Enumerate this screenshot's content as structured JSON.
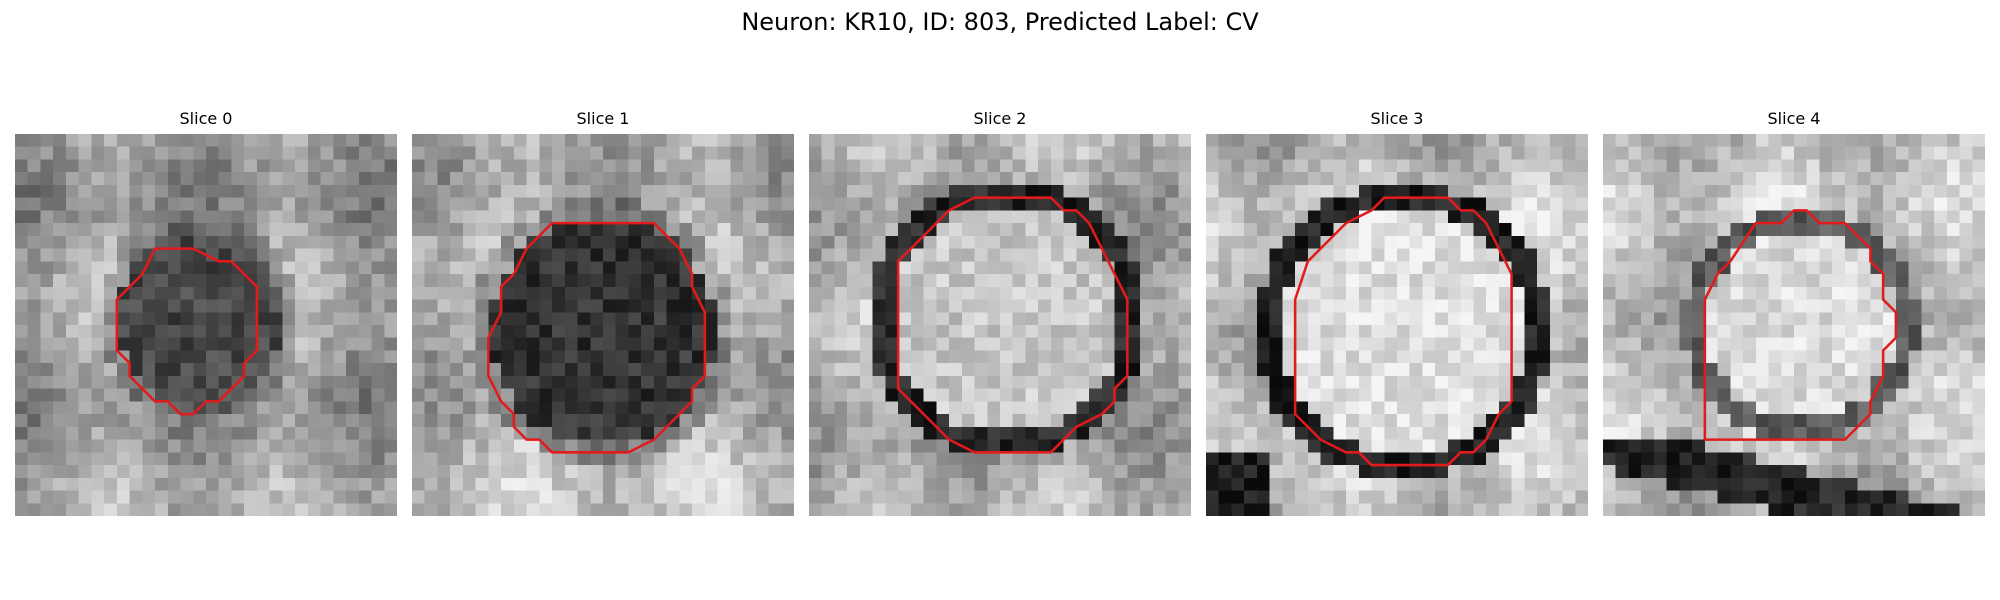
{
  "figure": {
    "title": "Neuron: KR10, ID: 803, Predicted Label: CV"
  },
  "slices": [
    {
      "title": "Slice 0"
    },
    {
      "title": "Slice 1"
    },
    {
      "title": "Slice 2"
    },
    {
      "title": "Slice 3"
    },
    {
      "title": "Slice 4"
    }
  ],
  "style": {
    "contour_color": "#e31a1c",
    "image_colormap": "grayscale"
  }
}
